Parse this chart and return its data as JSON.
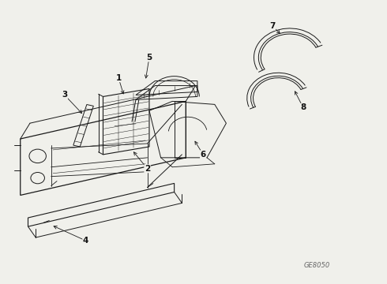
{
  "bg_color": "#f0f0eb",
  "line_color": "#1a1a1a",
  "label_color": "#111111",
  "caption": "GE8050",
  "figsize": [
    4.9,
    3.6
  ],
  "dpi": 100,
  "xlim": [
    0,
    10
  ],
  "ylim": [
    0,
    9
  ]
}
